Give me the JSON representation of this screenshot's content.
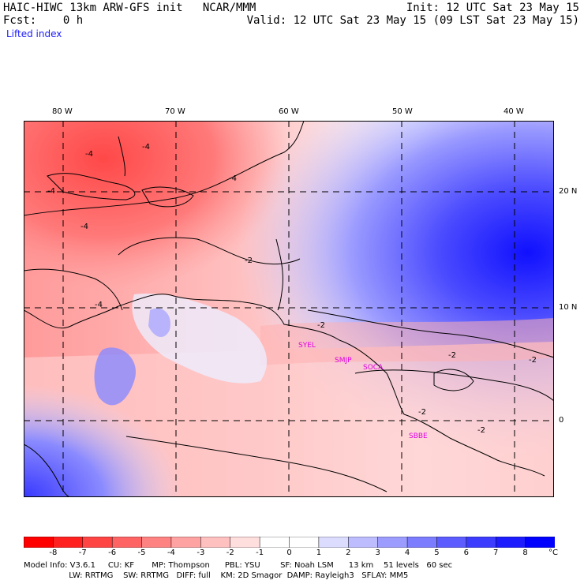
{
  "header": {
    "title": "HAIC-HIWC 13km ARW-GFS init   NCAR/MMM",
    "init": "Init: 12 UTC Sat 23 May 15",
    "fcst": "Fcst:    0 h",
    "valid": "Valid: 12 UTC Sat 23 May 15 (09 LST Sat 23 May 15)",
    "field": "Lifted index"
  },
  "axes": {
    "lon_labels": [
      "80 W",
      "70 W",
      "60 W",
      "50 W",
      "40 W"
    ],
    "lat_labels": [
      "20 N",
      "10 N",
      "0"
    ]
  },
  "stations": [
    "SYEL",
    "SMJP",
    "SOCA",
    "SBBE"
  ],
  "contour_labels": [
    "-4",
    "-2"
  ],
  "colorbar": {
    "labels": [
      "-8",
      "-7",
      "-6",
      "-5",
      "-4",
      "-3",
      "-2",
      "-1",
      "0",
      "1",
      "2",
      "3",
      "4",
      "5",
      "6",
      "7",
      "8"
    ],
    "unit": "°C",
    "colors": [
      "#ff0000",
      "#ff2020",
      "#ff4444",
      "#ff6464",
      "#ff8282",
      "#ffa2a2",
      "#ffc0c0",
      "#ffdede",
      "#ffffff",
      "#dcdcff",
      "#bcbcff",
      "#9c9cff",
      "#7c7cff",
      "#5c5cff",
      "#3c3cff",
      "#1c1cff",
      "#0000ff"
    ]
  },
  "footer": {
    "line1": "Model Info: V3.6.1     CU: KF       MP: Thompson      PBL: YSU        SF: Noah LSM      13 km    51 levels   60 sec",
    "line2": "                  LW: RRTMG    SW: RRTMG   DIFF: full    KM: 2D Smagor  DAMP: Rayleigh3   SFLAY: MM5"
  }
}
